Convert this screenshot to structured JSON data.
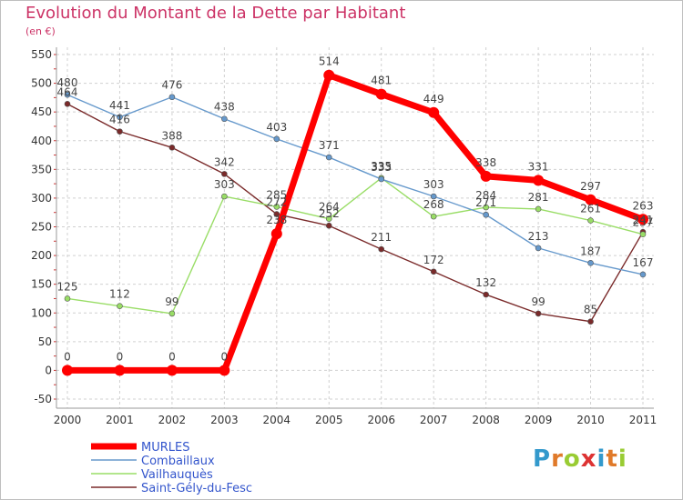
{
  "title": "Evolution du Montant de la Dette par Habitant",
  "subtitle": "(en €)",
  "logo": {
    "letters": [
      "P",
      "r",
      "o",
      "x",
      "i",
      "t",
      "i"
    ],
    "colors": [
      "#3399cc",
      "#e07a2a",
      "#99cc33",
      "#dd3333",
      "#3399cc",
      "#e07a2a",
      "#99cc33"
    ]
  },
  "chart_data": {
    "type": "line",
    "x": [
      "2000",
      "2001",
      "2002",
      "2003",
      "2004",
      "2005",
      "2006",
      "2007",
      "2008",
      "2009",
      "2010",
      "2011"
    ],
    "ylim": [
      -50,
      550
    ],
    "yticks": [
      "-50",
      "0",
      "50",
      "100",
      "150",
      "200",
      "250",
      "300",
      "350",
      "400",
      "450",
      "500",
      "550"
    ],
    "grid": true,
    "legend_position": "bottom-left",
    "series": [
      {
        "name": "MURLES",
        "color": "#ff0000",
        "values": [
          0,
          0,
          0,
          0,
          238,
          514,
          481,
          449,
          338,
          331,
          297,
          263
        ],
        "labels": [
          "0",
          "0",
          "0",
          "0",
          "238",
          "514",
          "481",
          "449",
          "338",
          "331",
          "297",
          "263"
        ]
      },
      {
        "name": "Combaillaux",
        "color": "#6699cc",
        "values": [
          480,
          441,
          476,
          438,
          403,
          371,
          333,
          303,
          271,
          213,
          187,
          167
        ],
        "labels": [
          "480",
          "441",
          "476",
          "438",
          "403",
          "371",
          "333",
          "303",
          "271",
          "213",
          "187",
          "167"
        ]
      },
      {
        "name": "Vailhauquès",
        "color": "#99dd66",
        "values": [
          125,
          112,
          99,
          303,
          285,
          264,
          335,
          268,
          284,
          281,
          261,
          237
        ],
        "labels": [
          "125",
          "112",
          "99",
          "303",
          "285",
          "264",
          "335",
          "268",
          "284",
          "281",
          "261",
          "237"
        ]
      },
      {
        "name": "Saint-Gély-du-Fesc",
        "color": "#7a2a2a",
        "values": [
          464,
          416,
          388,
          342,
          272,
          252,
          211,
          172,
          132,
          99,
          85,
          241
        ],
        "labels": [
          "464",
          "416",
          "388",
          "342",
          "272",
          "252",
          "211",
          "172",
          "132",
          "99",
          "85",
          "241"
        ]
      }
    ]
  }
}
